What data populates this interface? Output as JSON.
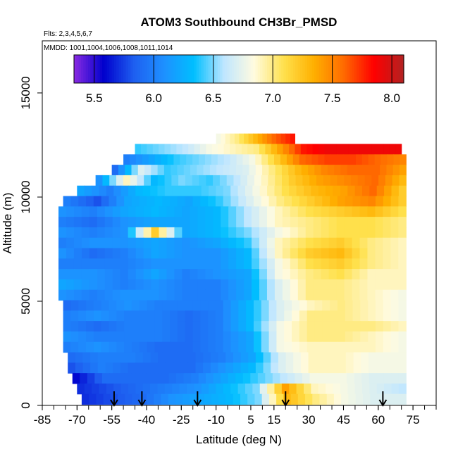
{
  "chart_data": {
    "type": "heatmap",
    "title": "ATOM3 Southbound CH3Br_PMSD",
    "subtitle_flights": "Flts: 2,3,4,5,6,7",
    "subtitle_dates": "MMDD: 1001,1004,1006,1008,1011,1014",
    "xlabel": "Latitude (deg N)",
    "ylabel": "Altitude (m)",
    "xlim": [
      -85,
      85
    ],
    "ylim": [
      0,
      17500
    ],
    "x_tick_labels": [
      "-85",
      "-70",
      "-55",
      "-40",
      "-25",
      "-10",
      "5",
      "15",
      "30",
      "45",
      "60",
      "75"
    ],
    "x_ticks": [
      -85,
      -70,
      -55,
      -40,
      -25,
      -10,
      5,
      15,
      30,
      45,
      60,
      75
    ],
    "y_ticks": [
      0,
      5000,
      10000,
      15000
    ],
    "y_tick_labels": [
      "0",
      "5000",
      "10000",
      "15000"
    ],
    "colorbar": {
      "range": [
        5.33,
        8.1
      ],
      "ticks": [
        5.5,
        6.0,
        6.5,
        7.0,
        7.5,
        8.0
      ],
      "tick_labels": [
        "5.5",
        "6.0",
        "6.5",
        "7.0",
        "7.5",
        "8.0"
      ],
      "colors": [
        "#8a2be2",
        "#0000cd",
        "#1e5ff0",
        "#1e90ff",
        "#00bfff",
        "#bfe6ff",
        "#fffbe0",
        "#ffe14d",
        "#ffb000",
        "#ff6a00",
        "#ff0000",
        "#b22222"
      ]
    },
    "profile_arrows_lat": [
      -54,
      -42,
      -18,
      20,
      62
    ],
    "value_field": {
      "rows": [
        {
          "alt": 12800,
          "x0": -10,
          "x1": 24,
          "values": [
            6.8,
            7.0,
            7.3,
            7.6,
            7.8
          ]
        },
        {
          "alt": 12300,
          "x0": -45,
          "x1": 70,
          "values": [
            6.4,
            6.5,
            6.6,
            6.8,
            6.9,
            7.0,
            7.4,
            7.8,
            7.9,
            7.9,
            7.9,
            7.9
          ]
        },
        {
          "alt": 11800,
          "x0": -50,
          "x1": 72,
          "values": [
            6.0,
            6.2,
            6.4,
            6.5,
            6.6,
            6.8,
            7.2,
            7.6,
            7.7,
            7.7,
            7.6,
            7.5
          ]
        },
        {
          "alt": 11300,
          "x0": -55,
          "x1": 72,
          "values": [
            5.9,
            6.7,
            6.4,
            6.5,
            6.6,
            6.7,
            7.0,
            7.3,
            7.5,
            7.6,
            7.6,
            7.4
          ]
        },
        {
          "alt": 10800,
          "x0": -62,
          "x1": 72,
          "values": [
            6.1,
            6.9,
            6.3,
            6.5,
            6.4,
            6.6,
            6.9,
            7.2,
            7.4,
            7.5,
            7.6,
            7.3
          ]
        },
        {
          "alt": 10300,
          "x0": -70,
          "x1": 72,
          "values": [
            6.2,
            6.0,
            6.3,
            6.4,
            6.4,
            6.5,
            6.8,
            7.1,
            7.3,
            7.4,
            7.6,
            7.2
          ]
        },
        {
          "alt": 9800,
          "x0": -76,
          "x1": 72,
          "values": [
            6.0,
            5.8,
            6.2,
            6.3,
            6.2,
            6.4,
            6.7,
            7.0,
            7.2,
            7.4,
            7.5,
            7.2
          ]
        },
        {
          "alt": 9300,
          "x0": -78,
          "x1": 72,
          "values": [
            6.1,
            6.0,
            6.2,
            6.3,
            6.2,
            6.3,
            6.6,
            6.9,
            7.1,
            7.2,
            7.3,
            7.1
          ]
        },
        {
          "alt": 8800,
          "x0": -78,
          "x1": 72,
          "values": [
            6.0,
            5.9,
            6.1,
            6.2,
            6.2,
            6.3,
            6.6,
            6.9,
            7.0,
            7.1,
            7.1,
            7.0
          ]
        },
        {
          "alt": 8300,
          "x0": -78,
          "x1": 72,
          "values": [
            6.1,
            6.0,
            6.1,
            7.2,
            6.2,
            6.3,
            6.5,
            6.8,
            7.0,
            7.1,
            7.1,
            7.0
          ]
        },
        {
          "alt": 7800,
          "x0": -78,
          "x1": 72,
          "values": [
            6.0,
            6.1,
            6.1,
            6.2,
            6.1,
            6.2,
            6.4,
            6.9,
            7.1,
            7.2,
            7.0,
            6.9
          ]
        },
        {
          "alt": 7300,
          "x0": -78,
          "x1": 72,
          "values": [
            6.1,
            5.9,
            6.0,
            6.2,
            6.1,
            6.1,
            6.3,
            6.9,
            7.2,
            7.3,
            7.0,
            6.9
          ]
        },
        {
          "alt": 6800,
          "x0": -78,
          "x1": 72,
          "values": [
            6.0,
            6.0,
            6.0,
            6.1,
            6.1,
            6.1,
            6.3,
            6.8,
            7.1,
            7.2,
            7.0,
            6.9
          ]
        },
        {
          "alt": 6300,
          "x0": -78,
          "x1": 72,
          "values": [
            6.1,
            6.1,
            6.0,
            6.2,
            6.0,
            6.1,
            6.2,
            6.8,
            7.0,
            7.1,
            6.9,
            6.9
          ]
        },
        {
          "alt": 5800,
          "x0": -78,
          "x1": 72,
          "values": [
            6.2,
            6.1,
            6.0,
            6.1,
            6.0,
            6.0,
            6.2,
            6.7,
            7.0,
            7.0,
            6.9,
            6.9
          ]
        },
        {
          "alt": 5300,
          "x0": -78,
          "x1": 72,
          "values": [
            6.1,
            6.0,
            6.1,
            6.1,
            6.0,
            6.0,
            6.2,
            6.7,
            7.0,
            7.0,
            6.9,
            6.8
          ]
        },
        {
          "alt": 4800,
          "x0": -76,
          "x1": 72,
          "values": [
            5.9,
            6.0,
            6.1,
            6.0,
            6.0,
            6.0,
            6.3,
            6.7,
            6.9,
            7.0,
            6.9,
            6.8
          ]
        },
        {
          "alt": 4300,
          "x0": -76,
          "x1": 72,
          "values": [
            6.0,
            6.1,
            6.0,
            6.0,
            5.9,
            6.0,
            6.3,
            6.7,
            7.0,
            7.0,
            6.9,
            6.8
          ]
        },
        {
          "alt": 3800,
          "x0": -76,
          "x1": 72,
          "values": [
            6.0,
            5.9,
            6.0,
            6.0,
            5.9,
            6.0,
            6.3,
            6.8,
            7.0,
            7.0,
            7.0,
            6.9
          ]
        },
        {
          "alt": 3300,
          "x0": -76,
          "x1": 72,
          "values": [
            6.1,
            6.0,
            6.0,
            6.0,
            5.9,
            6.0,
            6.2,
            6.8,
            7.0,
            7.0,
            6.9,
            6.8
          ]
        },
        {
          "alt": 2800,
          "x0": -76,
          "x1": 72,
          "values": [
            6.0,
            6.1,
            6.0,
            5.9,
            5.9,
            6.0,
            6.2,
            6.8,
            6.9,
            6.9,
            6.9,
            6.8
          ]
        },
        {
          "alt": 2300,
          "x0": -74,
          "x1": 72,
          "values": [
            5.9,
            6.0,
            6.0,
            5.9,
            5.9,
            6.0,
            6.2,
            6.7,
            6.9,
            6.9,
            6.8,
            6.8
          ]
        },
        {
          "alt": 1800,
          "x0": -74,
          "x1": 72,
          "values": [
            5.8,
            6.0,
            5.9,
            5.9,
            5.9,
            6.1,
            6.3,
            6.7,
            6.9,
            6.9,
            6.8,
            6.8
          ]
        },
        {
          "alt": 1300,
          "x0": -72,
          "x1": 72,
          "values": [
            5.6,
            5.9,
            5.9,
            5.9,
            6.0,
            6.2,
            6.4,
            6.6,
            6.8,
            6.8,
            6.7,
            6.7
          ]
        },
        {
          "alt": 800,
          "x0": -70,
          "x1": 72,
          "values": [
            5.7,
            5.8,
            5.9,
            6.0,
            6.1,
            6.3,
            6.5,
            7.4,
            6.9,
            6.8,
            6.7,
            6.6
          ]
        },
        {
          "alt": 300,
          "x0": -68,
          "x1": 72,
          "values": [
            5.7,
            5.8,
            5.9,
            6.1,
            6.2,
            6.3,
            6.5,
            7.3,
            7.0,
            6.8,
            6.7,
            6.7
          ]
        }
      ]
    }
  }
}
